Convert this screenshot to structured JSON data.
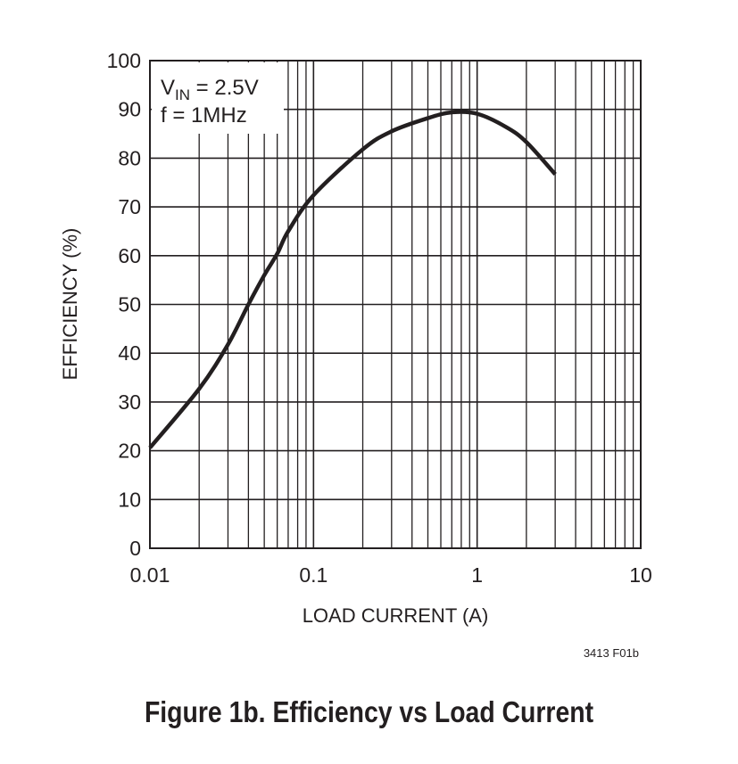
{
  "chart_data": {
    "type": "line",
    "title": "",
    "xlabel": "LOAD CURRENT (A)",
    "ylabel": "EFFICIENCY (%)",
    "xscale": "log",
    "xlim": [
      0.01,
      10
    ],
    "ylim": [
      0,
      100
    ],
    "xticks": [
      "0.01",
      "0.1",
      "1",
      "10"
    ],
    "yticks": [
      "0",
      "10",
      "20",
      "30",
      "40",
      "50",
      "60",
      "70",
      "80",
      "90",
      "100"
    ],
    "grid": true,
    "annotation": {
      "line1_main": "V",
      "line1_sub": "IN",
      "line1_rest": " = 2.5V",
      "line2": "f = 1MHz"
    },
    "series": [
      {
        "x": [
          0.01,
          0.02,
          0.03,
          0.04,
          0.05,
          0.06,
          0.07,
          0.1,
          0.2,
          0.3,
          0.5,
          0.7,
          1,
          1.5,
          2,
          3
        ],
        "y": [
          20.6,
          32.7,
          41.8,
          50,
          56,
          60.4,
          65,
          72.4,
          81.8,
          85.5,
          88.2,
          89.4,
          89.1,
          86.4,
          83.3,
          76.7
        ]
      }
    ],
    "figure_code": "3413 F01b",
    "line_color": "#231f20"
  },
  "caption": "Figure 1b. Efficiency vs Load Current"
}
